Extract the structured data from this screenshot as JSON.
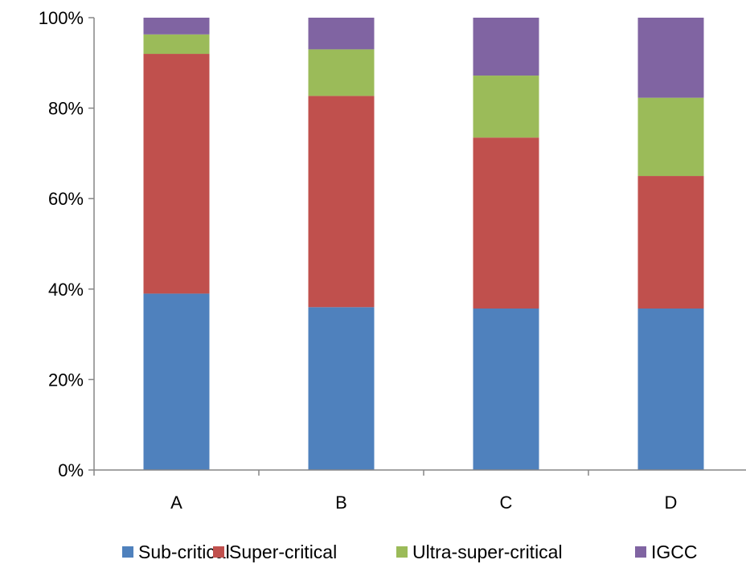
{
  "chart_data": {
    "type": "bar",
    "stacked": true,
    "percent_stacked": true,
    "categories": [
      "A",
      "B",
      "C",
      "D"
    ],
    "series": [
      {
        "name": "Sub-critical",
        "color": "#4F81BD",
        "values": [
          39,
          36,
          35.7,
          35.7
        ]
      },
      {
        "name": "Super-critical",
        "color": "#C0504D",
        "values": [
          53,
          46.7,
          37.8,
          29.3
        ]
      },
      {
        "name": "Ultra-super-critical",
        "color": "#9BBB59",
        "values": [
          4.3,
          10.3,
          13.7,
          17.3
        ]
      },
      {
        "name": "IGCC",
        "color": "#8064A2",
        "values": [
          3.7,
          7,
          12.8,
          17.7
        ]
      }
    ],
    "ylim": [
      0,
      100
    ],
    "yticks": [
      "0%",
      "20%",
      "40%",
      "60%",
      "80%",
      "100%"
    ],
    "grid": false,
    "legend_position": "bottom"
  }
}
